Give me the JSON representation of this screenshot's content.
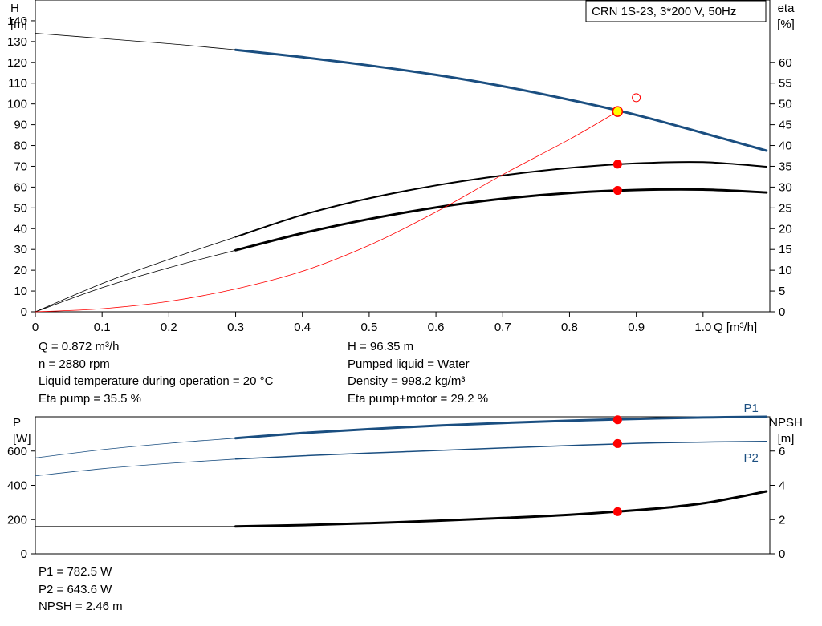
{
  "colors": {
    "curve_blue": "#1a4e80",
    "curve_black": "#000000",
    "red_curve": "#ff0000",
    "dot_red": "#ff0000",
    "dot_yellow": "#ffff00"
  },
  "chart_data": [
    {
      "type": "line",
      "title": "CRN 1S-23, 3*200 V, 50Hz",
      "xlabel": "Q [m³/h]",
      "ylabel": [
        "H",
        "[m]"
      ],
      "y2label": [
        "eta",
        "[%]"
      ],
      "xlim": [
        0,
        1.1
      ],
      "ylim": [
        0,
        150
      ],
      "y2lim": [
        0,
        75
      ],
      "xticks": [
        0,
        0.1,
        0.2,
        0.3,
        0.4,
        0.5,
        0.6,
        0.7,
        0.8,
        0.9,
        1.0
      ],
      "xtick_labels": [
        "0",
        "0.1",
        "0.2",
        "0.3",
        "0.4",
        "0.5",
        "0.6",
        "0.7",
        "0.8",
        "0.9",
        "1.0"
      ],
      "yticks": [
        0,
        10,
        20,
        30,
        40,
        50,
        60,
        70,
        80,
        90,
        100,
        110,
        120,
        130,
        140
      ],
      "y2ticks": [
        0,
        5,
        10,
        15,
        20,
        25,
        30,
        35,
        40,
        45,
        50,
        55,
        60
      ],
      "grid": false,
      "series": [
        {
          "axis": "y",
          "color": "#1a4e80",
          "width": 3,
          "x": [
            0.3,
            0.4,
            0.5,
            0.6,
            0.7,
            0.8,
            0.9,
            1.0,
            1.095
          ],
          "y": [
            126.0,
            122.5,
            118.5,
            114.0,
            108.5,
            102.0,
            94.7,
            86.0,
            77.5
          ]
        },
        {
          "axis": "y",
          "color": "#000000",
          "width": 0.8,
          "x": [
            0,
            0.1,
            0.2,
            0.3
          ],
          "y": [
            134.0,
            131.5,
            129.0,
            126.0
          ]
        },
        {
          "axis": "y2",
          "color": "#000000",
          "width": 2,
          "x": [
            0.3,
            0.4,
            0.5,
            0.6,
            0.7,
            0.8,
            0.9,
            1.0,
            1.095
          ],
          "y": [
            18.0,
            23.3,
            27.3,
            30.4,
            32.8,
            34.6,
            35.7,
            36.0,
            34.9
          ]
        },
        {
          "axis": "y2",
          "color": "#000000",
          "width": 0.8,
          "x": [
            0,
            0.1,
            0.2,
            0.3
          ],
          "y": [
            0,
            6.8,
            12.6,
            18.0
          ]
        },
        {
          "axis": "y2",
          "color": "#000000",
          "width": 3,
          "x": [
            0.3,
            0.4,
            0.5,
            0.6,
            0.7,
            0.8,
            0.9,
            1.0,
            1.095
          ],
          "y": [
            14.8,
            18.9,
            22.3,
            25.1,
            27.2,
            28.6,
            29.3,
            29.4,
            28.7
          ]
        },
        {
          "axis": "y2",
          "color": "#000000",
          "width": 0.8,
          "x": [
            0,
            0.1,
            0.2,
            0.3
          ],
          "y": [
            0,
            5.8,
            10.6,
            14.8
          ]
        },
        {
          "axis": "y",
          "color": "#ff0000",
          "width": 0.8,
          "x": [
            0,
            0.1,
            0.2,
            0.3,
            0.4,
            0.5,
            0.6,
            0.7,
            0.8,
            0.872
          ],
          "y": [
            0,
            1.5,
            5.0,
            11.0,
            19.5,
            32.0,
            48.0,
            66.0,
            83.0,
            96.35
          ]
        }
      ],
      "points": [
        {
          "axis": "y",
          "x": 0.872,
          "y": 96.35,
          "style": "yellow"
        },
        {
          "axis": "y",
          "x": 0.9,
          "y": 103.0,
          "style": "open-red"
        },
        {
          "axis": "y2",
          "x": 0.872,
          "y": 35.5,
          "style": "red"
        },
        {
          "axis": "y2",
          "x": 0.872,
          "y": 29.2,
          "style": "red"
        }
      ]
    },
    {
      "type": "line",
      "ylabel": [
        "P",
        "[W]"
      ],
      "y2label": [
        "NPSH",
        "[m]"
      ],
      "xlim": [
        0,
        1.1
      ],
      "ylim": [
        0,
        800
      ],
      "y2lim": [
        0,
        8
      ],
      "yticks": [
        0,
        200,
        400,
        600
      ],
      "y2ticks": [
        0,
        2,
        4,
        6
      ],
      "grid": false,
      "series": [
        {
          "name": "P1",
          "axis": "y",
          "color": "#1a4e80",
          "width": 3,
          "x": [
            0.3,
            0.4,
            0.5,
            0.6,
            0.7,
            0.8,
            0.9,
            1.0,
            1.095
          ],
          "y": [
            675,
            705,
            728,
            748,
            764,
            777,
            788,
            796,
            800
          ]
        },
        {
          "axis": "y",
          "color": "#1a4e80",
          "width": 0.8,
          "x": [
            0,
            0.1,
            0.2,
            0.3
          ],
          "y": [
            560,
            608,
            645,
            675
          ]
        },
        {
          "name": "P2",
          "axis": "y",
          "color": "#1a4e80",
          "width": 1.5,
          "x": [
            0.3,
            0.4,
            0.5,
            0.6,
            0.7,
            0.8,
            0.9,
            1.0,
            1.095
          ],
          "y": [
            553,
            572,
            588,
            603,
            618,
            632,
            645,
            652,
            656
          ]
        },
        {
          "axis": "y",
          "color": "#1a4e80",
          "width": 0.8,
          "x": [
            0,
            0.1,
            0.2,
            0.3
          ],
          "y": [
            455,
            497,
            528,
            553
          ]
        },
        {
          "axis": "y2",
          "color": "#000000",
          "width": 3,
          "x": [
            0.3,
            0.4,
            0.5,
            0.6,
            0.7,
            0.8,
            0.9,
            0.95,
            1.0,
            1.05,
            1.095
          ],
          "y": [
            1.6,
            1.68,
            1.79,
            1.93,
            2.09,
            2.28,
            2.55,
            2.72,
            2.95,
            3.3,
            3.65
          ]
        },
        {
          "axis": "y2",
          "color": "#000000",
          "width": 0.8,
          "x": [
            0,
            0.3
          ],
          "y": [
            1.6,
            1.6
          ]
        }
      ],
      "points": [
        {
          "axis": "y",
          "x": 0.872,
          "y": 782.5,
          "style": "red"
        },
        {
          "axis": "y",
          "x": 0.872,
          "y": 643.6,
          "style": "red"
        },
        {
          "axis": "y2",
          "x": 0.872,
          "y": 2.46,
          "style": "red"
        }
      ]
    }
  ],
  "info_top": {
    "left": [
      "Q = 0.872 m³/h",
      "n = 2880 rpm",
      "Liquid temperature during operation = 20 °C",
      "Eta pump = 35.5 %"
    ],
    "right": [
      "H = 96.35 m",
      "Pumped liquid = Water",
      "Density = 998.2 kg/m³",
      "Eta pump+motor = 29.2 %"
    ]
  },
  "info_bottom": [
    "P1 = 782.5 W",
    "P2 = 643.6 W",
    "NPSH = 2.46 m"
  ]
}
